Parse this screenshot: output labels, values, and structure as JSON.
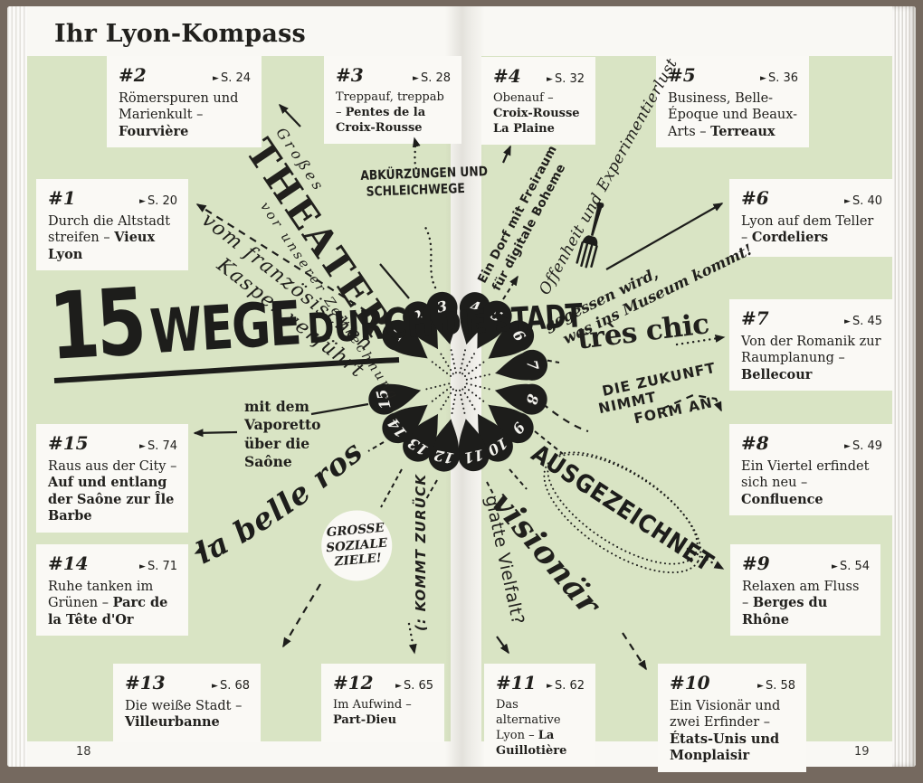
{
  "page": {
    "header_title": "Ihr Lyon-Kompass",
    "left_page_number": "18",
    "right_page_number": "19"
  },
  "ui": {
    "page_marker": "►"
  },
  "center_title": {
    "t1": "15",
    "t2": "WEGE",
    "t3": "DURCH",
    "t4": "DIE STADT"
  },
  "drops": {
    "numbers": [
      "1",
      "2",
      "3",
      "4",
      "5",
      "6",
      "7",
      "8",
      "9",
      "10",
      "11",
      "12",
      "13",
      "14",
      "15"
    ]
  },
  "cards": [
    {
      "id": 1,
      "number": "#1",
      "page": "S. 20",
      "text": "Durch die Altstadt streifen – ",
      "highlight": "Vieux Lyon"
    },
    {
      "id": 2,
      "number": "#2",
      "page": "S. 24",
      "text": "Römerspuren und Marienkult – ",
      "highlight": "Fourvière"
    },
    {
      "id": 3,
      "number": "#3",
      "page": "S. 28",
      "text": "Treppauf, treppab – ",
      "highlight": "Pentes de la Croix-Rousse"
    },
    {
      "id": 4,
      "number": "#4",
      "page": "S. 32",
      "text": "Obenauf – ",
      "highlight": "Croix-Rousse La Plaine"
    },
    {
      "id": 5,
      "number": "#5",
      "page": "S. 36",
      "text": "Business, Belle-Époque und Beaux-Arts – ",
      "highlight": "Terreaux"
    },
    {
      "id": 6,
      "number": "#6",
      "page": "S. 40",
      "text": "Lyon auf dem Teller – ",
      "highlight": "Cordeliers"
    },
    {
      "id": 7,
      "number": "#7",
      "page": "S. 45",
      "text": "Von der Romanik zur Raumplanung – ",
      "highlight": "Bellecour"
    },
    {
      "id": 8,
      "number": "#8",
      "page": "S. 49",
      "text": "Ein Viertel erfindet sich neu – ",
      "highlight": "Confluence"
    },
    {
      "id": 9,
      "number": "#9",
      "page": "S. 54",
      "text": "Relaxen am Fluss – ",
      "highlight": "Berges du Rhône"
    },
    {
      "id": 10,
      "number": "#10",
      "page": "S. 58",
      "text": "Ein Visionär und zwei Erfinder – ",
      "highlight": "États-Unis und Monplaisir"
    },
    {
      "id": 11,
      "number": "#11",
      "page": "S. 62",
      "text": "Das alternative Lyon – ",
      "highlight": "La Guillotière"
    },
    {
      "id": 12,
      "number": "#12",
      "page": "S. 65",
      "text": "Im Aufwind – ",
      "highlight": "Part-Dieu"
    },
    {
      "id": 13,
      "number": "#13",
      "page": "S. 68",
      "text": "Die weiße Stadt – ",
      "highlight": "Villeurbanne"
    },
    {
      "id": 14,
      "number": "#14",
      "page": "S. 71",
      "text": "Ruhe tanken im Grünen – ",
      "highlight": "Parc de la Tête d'Or"
    },
    {
      "id": 15,
      "number": "#15",
      "page": "S. 74",
      "text": "Raus aus der City – ",
      "highlight": "Auf und entlang der Saône zur Île Barbe"
    }
  ],
  "labels": {
    "kasper_l1": "vom französischen",
    "kasper_l2": "Kasper verführt",
    "theater_pre": "Großes",
    "theater_main": "THEATER",
    "theater_post": "vor unserer Zeitrechnung",
    "abk_l1": "ABKÜRZUNGEN UND",
    "abk_l2": "SCHLEICHWEGE",
    "dorf_l1": "Ein Dorf mit Freiraum",
    "dorf_l2": "für digitale Boheme",
    "offenheit": "Offenheit und Experimentierlust",
    "gegessen_l1": "gegessen wird,",
    "gegessen_l2": "was ins Museum kommt!",
    "tres_chic": "très chic",
    "zukunft_l1": "DIE ZUKUNFT",
    "zukunft_l2": "NIMMT",
    "zukunft_l3": "FORM AN",
    "ausgezeichnet": "AUSGEZEICHNET",
    "visionaer": "visionär",
    "vielfalt": "glatte Vielfalt?",
    "kommt_zurueck": "(: KOMMT ZURÜCK",
    "grosse_l1": "GROSSE",
    "grosse_l2": "SOZIALE",
    "grosse_l3": "ZIELE!",
    "belle_rose": "la belle rose",
    "vaporetto": "mit dem Vaporetto über die Saône"
  }
}
